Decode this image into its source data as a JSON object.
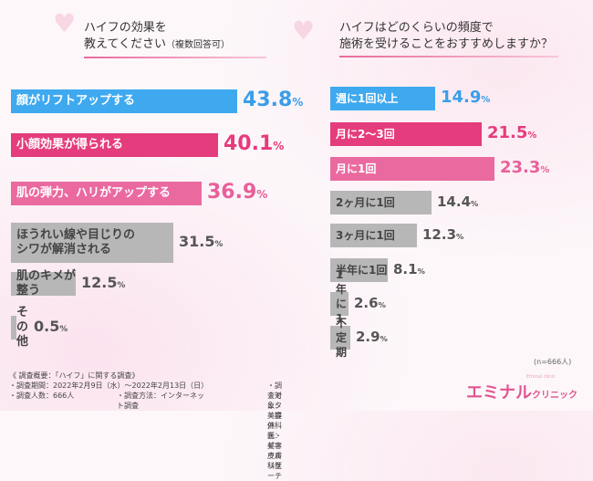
{
  "chart_data": [
    {
      "type": "bar",
      "title": "ハイフの効果を\n教えてください",
      "title_note": "（複数回答可）",
      "categories": [
        "顔がリフトアップする",
        "小顔効果が得られる",
        "肌の弾力、ハリがアップする",
        "ほうれい線や目じりの\nシワが解消される",
        "肌のキメが整う",
        "その他"
      ],
      "values": [
        43.8,
        40.1,
        36.9,
        31.5,
        12.5,
        0.5
      ],
      "colors": [
        "#3fa9ef",
        "#e43c7c",
        "#ea6aa0",
        "#b7b7b7",
        "#b7b7b7",
        "#b7b7b7"
      ],
      "value_colors": [
        "#3a9ee9",
        "#e63b7d",
        "#e8609a",
        "#555555",
        "#555555",
        "#555555"
      ],
      "unit": "%",
      "orientation": "horizontal"
    },
    {
      "type": "bar",
      "title": "ハイフはどのくらいの頻度で\n施術を受けることをおすすめしますか？",
      "categories": [
        "週に1回以上",
        "月に2〜3回",
        "月に1回",
        "2ヶ月に1回",
        "3ヶ月に1回",
        "半年に1回",
        "1年に1回",
        "不定期"
      ],
      "values": [
        14.9,
        21.5,
        23.3,
        14.4,
        12.3,
        8.1,
        2.6,
        2.9
      ],
      "colors": [
        "#3fa9ef",
        "#e43c7c",
        "#ea6aa0",
        "#b7b7b7",
        "#b7b7b7",
        "#b7b7b7",
        "#b7b7b7",
        "#b7b7b7"
      ],
      "value_colors": [
        "#3a9ee9",
        "#e63b7d",
        "#e8609a",
        "#555555",
        "#555555",
        "#555555",
        "#555555",
        "#555555"
      ],
      "unit": "%",
      "orientation": "horizontal",
      "note": "(n=666人)"
    }
  ],
  "footer": {
    "heading": "《 調査概要：「ハイフ」に関する調査》",
    "period": "・調査期間：2022年2月9日（水）〜2022年2月13日（日）",
    "target": "・調査対象：美容外科医・美容皮膚科医",
    "count": "・調査人数：666人",
    "method": "・調査方法：インターネット調査",
    "provider": "・モニター提供元：ゼネラルリサーチ"
  },
  "logo": {
    "main": "エミナル",
    "sub": "クリニック",
    "tiny": "Eminal clinic"
  }
}
